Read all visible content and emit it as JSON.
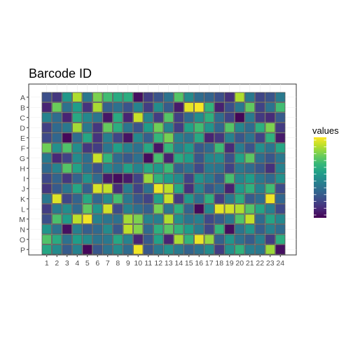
{
  "chart_data": {
    "type": "heatmap",
    "title": "Barcode ID",
    "xlabel": "",
    "ylabel": "",
    "rows": [
      "A",
      "B",
      "C",
      "D",
      "E",
      "F",
      "G",
      "H",
      "I",
      "J",
      "K",
      "L",
      "M",
      "N",
      "O",
      "P"
    ],
    "columns": [
      "1",
      "2",
      "3",
      "4",
      "5",
      "6",
      "7",
      "8",
      "9",
      "10",
      "11",
      "12",
      "13",
      "14",
      "15",
      "16",
      "17",
      "18",
      "19",
      "20",
      "21",
      "22",
      "23",
      "24"
    ],
    "values": [
      [
        0.24,
        0.16,
        0.53,
        0.88,
        0.4,
        0.8,
        0.69,
        0.61,
        0.62,
        0.04,
        0.18,
        0.26,
        0.38,
        0.73,
        0.48,
        0.35,
        0.32,
        0.24,
        0.14,
        0.88,
        0.4,
        0.21,
        0.26,
        0.41
      ],
      [
        0.1,
        0.77,
        0.37,
        0.55,
        0.15,
        0.87,
        0.31,
        0.37,
        0.26,
        0.45,
        0.18,
        0.49,
        0.29,
        0.07,
        0.96,
        0.99,
        0.65,
        0.09,
        0.24,
        0.4,
        0.75,
        0.2,
        0.38,
        0.69
      ],
      [
        0.45,
        0.35,
        0.1,
        0.6,
        0.47,
        0.39,
        0.06,
        0.61,
        0.1,
        0.92,
        0.45,
        0.18,
        0.73,
        0.19,
        0.34,
        0.49,
        0.63,
        0.35,
        0.2,
        0.01,
        0.41,
        0.17,
        0.12,
        0.28
      ],
      [
        0.19,
        0.34,
        0.4,
        0.86,
        0.4,
        0.16,
        0.76,
        0.62,
        0.39,
        0.26,
        0.55,
        0.78,
        0.45,
        0.18,
        0.57,
        0.69,
        0.52,
        0.33,
        0.73,
        0.46,
        0.35,
        0.63,
        0.8,
        0.17
      ],
      [
        0.22,
        0.33,
        0.02,
        0.35,
        0.59,
        0.15,
        0.43,
        0.21,
        0.05,
        0.47,
        0.3,
        0.66,
        0.79,
        0.44,
        0.38,
        0.6,
        0.1,
        0.16,
        0.44,
        0.27,
        0.38,
        0.2,
        0.64,
        0.07
      ],
      [
        0.78,
        0.5,
        0.72,
        0.49,
        0.16,
        0.18,
        0.39,
        0.56,
        0.44,
        0.37,
        0.6,
        0.06,
        0.66,
        0.43,
        0.54,
        0.28,
        0.34,
        0.68,
        0.12,
        0.42,
        0.26,
        0.5,
        0.39,
        0.59
      ],
      [
        0.41,
        0.11,
        0.2,
        0.48,
        0.36,
        0.92,
        0.65,
        0.35,
        0.28,
        0.37,
        0.03,
        0.7,
        0.09,
        0.61,
        0.55,
        0.27,
        0.46,
        0.49,
        0.25,
        0.57,
        0.74,
        0.36,
        0.27,
        0.4
      ],
      [
        0.34,
        0.45,
        0.73,
        0.57,
        0.37,
        0.25,
        0.47,
        0.39,
        0.57,
        0.45,
        0.6,
        0.53,
        0.68,
        0.31,
        0.38,
        0.22,
        0.41,
        0.38,
        0.2,
        0.4,
        0.35,
        0.27,
        0.14,
        0.44
      ],
      [
        0.22,
        0.32,
        0.16,
        0.32,
        0.51,
        0.34,
        0.07,
        0.03,
        0.07,
        0.2,
        0.85,
        0.64,
        0.55,
        0.48,
        0.2,
        0.51,
        0.42,
        0.28,
        0.7,
        0.46,
        0.55,
        0.4,
        0.34,
        0.5
      ],
      [
        0.16,
        0.28,
        0.39,
        0.59,
        0.3,
        0.94,
        0.91,
        0.13,
        0.42,
        0.2,
        0.38,
        0.97,
        0.9,
        0.59,
        0.14,
        0.46,
        0.27,
        0.35,
        0.09,
        0.54,
        0.64,
        0.44,
        0.69,
        0.23
      ],
      [
        0.4,
        0.95,
        0.21,
        0.32,
        0.6,
        0.33,
        0.48,
        0.7,
        0.4,
        0.27,
        0.2,
        0.57,
        0.92,
        0.17,
        0.53,
        0.36,
        0.63,
        0.18,
        0.4,
        0.61,
        0.29,
        0.35,
        0.98,
        0.33
      ],
      [
        0.18,
        0.42,
        0.49,
        0.34,
        0.75,
        0.52,
        0.93,
        0.23,
        0.44,
        0.36,
        0.3,
        0.79,
        0.4,
        0.63,
        0.32,
        0.02,
        0.47,
        0.96,
        0.93,
        0.88,
        0.73,
        0.58,
        0.43,
        0.22
      ],
      [
        0.24,
        0.71,
        0.55,
        0.9,
        0.98,
        0.44,
        0.39,
        0.37,
        0.86,
        0.8,
        0.45,
        0.43,
        0.88,
        0.5,
        0.39,
        0.43,
        0.22,
        0.29,
        0.4,
        0.72,
        0.91,
        0.35,
        0.58,
        0.47
      ],
      [
        0.52,
        0.38,
        0.04,
        0.43,
        0.3,
        0.34,
        0.48,
        0.27,
        0.9,
        0.81,
        0.34,
        0.63,
        0.74,
        0.65,
        0.55,
        0.42,
        0.21,
        0.65,
        0.03,
        0.39,
        0.52,
        0.3,
        0.44,
        0.35
      ],
      [
        0.72,
        0.61,
        0.37,
        0.55,
        0.48,
        0.38,
        0.4,
        0.59,
        0.45,
        0.1,
        0.28,
        0.57,
        0.1,
        0.87,
        0.65,
        0.97,
        0.84,
        0.31,
        0.52,
        0.37,
        0.29,
        0.43,
        0.18,
        0.62
      ],
      [
        0.59,
        0.48,
        0.29,
        0.44,
        0.02,
        0.27,
        0.38,
        0.48,
        0.35,
        0.98,
        0.27,
        0.4,
        0.5,
        0.41,
        0.32,
        0.38,
        0.48,
        0.18,
        0.5,
        0.64,
        0.43,
        0.4,
        0.85,
        0.04
      ]
    ],
    "legend": {
      "title": "values",
      "position": "right",
      "colormap": [
        "#440154",
        "#482878",
        "#3e4a89",
        "#31688e",
        "#26828e",
        "#1f9e89",
        "#35b779",
        "#6ece58",
        "#b5de2b",
        "#fde725"
      ]
    },
    "grid": true
  }
}
